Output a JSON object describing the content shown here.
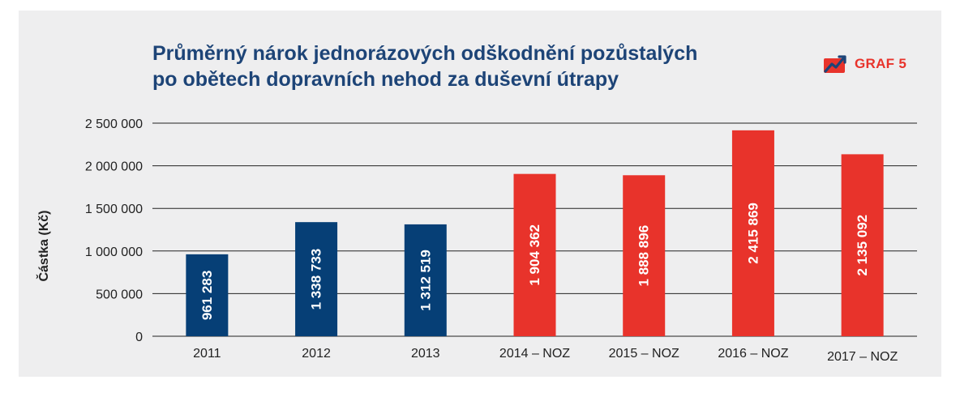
{
  "header": {
    "title_line1": "Průměrný nárok jednorázových odškodnění pozůstalých",
    "title_line2": "po obětech dopravních nehod za duševní útrapy",
    "badge_label": "GRAF 5",
    "badge_icon": "rising-chart-icon"
  },
  "colors": {
    "panel_background": "#eeeeef",
    "title": "#1d4477",
    "bar_old": "#063f76",
    "bar_noz": "#e8332b",
    "grid": "#222222",
    "axis_text": "#222222",
    "bar_label": "#ffffff"
  },
  "chart_data": {
    "type": "bar",
    "categories": [
      "2011",
      "2012",
      "2013",
      "2014 – NOZ",
      "2015 – NOZ",
      "2016 – NOZ",
      "2017 – NOZ"
    ],
    "values": [
      961283,
      1338733,
      1312519,
      1904362,
      1888896,
      2415869,
      2135092
    ],
    "value_labels": [
      "961 283",
      "1 338 733",
      "1 312 519",
      "1 904 362",
      "1 888 896",
      "2 415 869",
      "2 135 092"
    ],
    "bar_colors": [
      "#063f76",
      "#063f76",
      "#063f76",
      "#e8332b",
      "#e8332b",
      "#e8332b",
      "#e8332b"
    ],
    "ylabel": "Částka (Kč)",
    "ylim": [
      0,
      2500000
    ],
    "yticks": [
      0,
      500000,
      1000000,
      1500000,
      2000000,
      2500000
    ],
    "ytick_labels": [
      "0",
      "500 000",
      "1 000 000",
      "1 500 000",
      "2 000 000",
      "2 500 000"
    ],
    "grid": true,
    "legend": "none"
  }
}
